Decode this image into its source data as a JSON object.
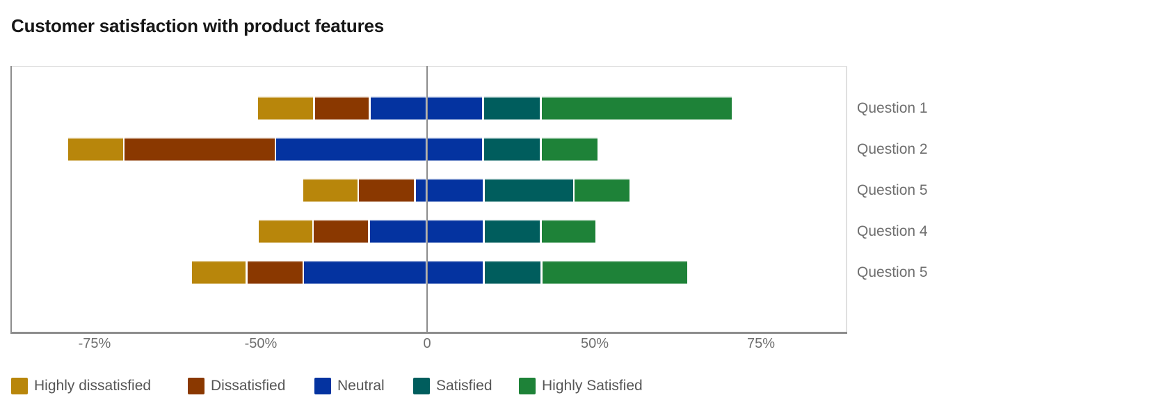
{
  "title": "Customer satisfaction with product features",
  "colors": {
    "axis_line": "#8d8d8d",
    "plot_border": "#e0e0e0",
    "title_text": "#161616",
    "axis_label_text": "#6f6f6f",
    "legend_text": "#565656",
    "background": "#ffffff"
  },
  "chart_data": {
    "type": "bar",
    "variant": "horizontal-diverging-stacked",
    "title": "Customer satisfaction with product features",
    "categories": [
      "Question 1",
      "Question 2",
      "Question 5",
      "Question 4",
      "Question 5"
    ],
    "series": [
      {
        "name": "Highly dissatisfied",
        "key": "highly-dissatisfied",
        "color": "#b8860b",
        "values": [
          16.6,
          8.5,
          16.7,
          16.1,
          8.4
        ]
      },
      {
        "name": "Dissatisfied",
        "key": "dissatisfied",
        "color": "#8a3800",
        "values": [
          16.7,
          25.0,
          17.1,
          16.9,
          14.9
        ]
      },
      {
        "name": "Neutral",
        "key": "neutral",
        "color": "#0433a0",
        "values": [
          34.0,
          62.4,
          20.6,
          34.4,
          54.2
        ]
      },
      {
        "name": "Satisfied",
        "key": "satisfied",
        "color": "#005d5d",
        "values": [
          17.2,
          17.2,
          26.8,
          17.0,
          17.2
        ]
      },
      {
        "name": "Highly Satisfied",
        "key": "highly-satisfied",
        "color": "#1e8238",
        "values": [
          36.8,
          16.6,
          11.6,
          16.3,
          29.9
        ]
      }
    ],
    "rows": [
      {
        "label": "Question 1",
        "boundaries": [
          -50.5,
          -33.9,
          -17.2,
          16.8,
          34.0,
          70.8
        ]
      },
      {
        "label": "Question 2",
        "boundaries": [
          -79.1,
          -70.6,
          -45.6,
          16.8,
          34.0,
          50.6
        ]
      },
      {
        "label": "Question 5",
        "boundaries": [
          -37.4,
          -20.7,
          -3.6,
          17.0,
          43.8,
          55.4
        ]
      },
      {
        "label": "Question 4",
        "boundaries": [
          -50.4,
          -34.3,
          -17.4,
          17.0,
          34.0,
          50.3
        ]
      },
      {
        "label": "Question 5",
        "boundaries": [
          -60.5,
          -52.1,
          -37.2,
          17.0,
          34.2,
          64.1
        ]
      }
    ],
    "x_axis": {
      "tick_labels": [
        "-75%",
        "-50%",
        "0",
        "50%",
        "75%"
      ],
      "tick_values": [
        -75,
        -50,
        0,
        50,
        75
      ],
      "ticks_evenly_spaced": true,
      "zero_baseline": true
    },
    "legend": {
      "position": "bottom-left",
      "entries": [
        "Highly dissatisfied",
        "Dissatisfied",
        "Neutral",
        "Satisfied",
        "Highly Satisfied"
      ]
    }
  }
}
